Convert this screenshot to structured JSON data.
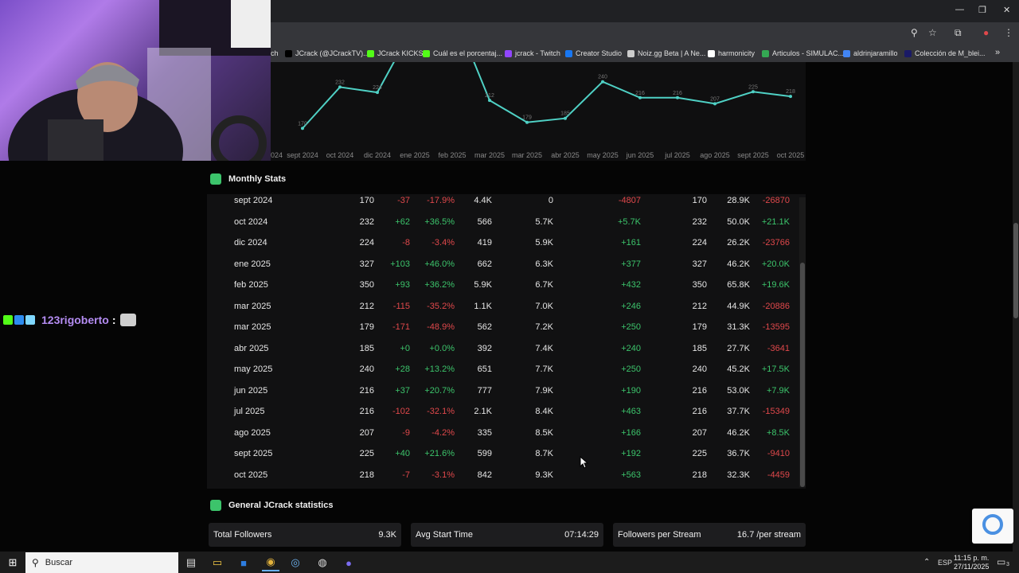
{
  "browser": {
    "bookmarks": [
      {
        "label": "ch",
        "color": "#6441a5"
      },
      {
        "label": "JCrack (@JCrackTV)...",
        "color": "#000000"
      },
      {
        "label": "JCrack KICKS",
        "color": "#53fc18"
      },
      {
        "label": "Cuál es el porcentaj...",
        "color": "#53fc18"
      },
      {
        "label": "jcrack - Twitch",
        "color": "#9146ff"
      },
      {
        "label": "Creator Studio",
        "color": "#1877f2"
      },
      {
        "label": "Noiz.gg Beta | A Ne...",
        "color": "#cccccc"
      },
      {
        "label": "harmonicity",
        "color": "#ffffff"
      },
      {
        "label": "Articulos - SIMULAC...",
        "color": "#34a853"
      },
      {
        "label": "aldrinjaramillo",
        "color": "#4285f4"
      },
      {
        "label": "Colección de M_blei...",
        "color": "#1a1a66"
      }
    ],
    "more": "»"
  },
  "chart_data": {
    "type": "line",
    "x": [
      "…024",
      "sept 2024",
      "oct 2024",
      "dic 2024",
      "ene 2025",
      "feb 2025",
      "mar 2025",
      "mar 2025",
      "abr 2025",
      "may 2025",
      "jun 2025",
      "jul 2025",
      "ago 2025",
      "sept 2025",
      "oct 2025"
    ],
    "series": [
      {
        "values": [
          null,
          170,
          232,
          224,
          327,
          350,
          212,
          179,
          185,
          240,
          216,
          216,
          207,
          225,
          218
        ]
      }
    ],
    "point_labels": [
      "170",
      "232",
      "224",
      "212",
      "179",
      "185",
      "240",
      "216",
      "216",
      "207",
      "225",
      "218"
    ],
    "color": "#4fd1c5",
    "ylim": [
      150,
      260
    ]
  },
  "monthly": {
    "title": "Monthly Stats",
    "rows": [
      [
        "sept 2024",
        "170",
        "-37",
        "-17.9%",
        "4.4K",
        "0",
        "-4807",
        "170",
        "28.9K",
        "-26870"
      ],
      [
        "oct 2024",
        "232",
        "+62",
        "+36.5%",
        "566",
        "5.7K",
        "+5.7K",
        "232",
        "50.0K",
        "+21.1K"
      ],
      [
        "dic 2024",
        "224",
        "-8",
        "-3.4%",
        "419",
        "5.9K",
        "+161",
        "224",
        "26.2K",
        "-23766"
      ],
      [
        "ene 2025",
        "327",
        "+103",
        "+46.0%",
        "662",
        "6.3K",
        "+377",
        "327",
        "46.2K",
        "+20.0K"
      ],
      [
        "feb 2025",
        "350",
        "+93",
        "+36.2%",
        "5.9K",
        "6.7K",
        "+432",
        "350",
        "65.8K",
        "+19.6K"
      ],
      [
        "mar 2025",
        "212",
        "-115",
        "-35.2%",
        "1.1K",
        "7.0K",
        "+246",
        "212",
        "44.9K",
        "-20886"
      ],
      [
        "mar 2025",
        "179",
        "-171",
        "-48.9%",
        "562",
        "7.2K",
        "+250",
        "179",
        "31.3K",
        "-13595"
      ],
      [
        "abr 2025",
        "185",
        "+0",
        "+0.0%",
        "392",
        "7.4K",
        "+240",
        "185",
        "27.7K",
        "-3641"
      ],
      [
        "may 2025",
        "240",
        "+28",
        "+13.2%",
        "651",
        "7.7K",
        "+250",
        "240",
        "45.2K",
        "+17.5K"
      ],
      [
        "jun 2025",
        "216",
        "+37",
        "+20.7%",
        "777",
        "7.9K",
        "+190",
        "216",
        "53.0K",
        "+7.9K"
      ],
      [
        "jul 2025",
        "216",
        "-102",
        "-32.1%",
        "2.1K",
        "8.4K",
        "+463",
        "216",
        "37.7K",
        "-15349"
      ],
      [
        "ago 2025",
        "207",
        "-9",
        "-4.2%",
        "335",
        "8.5K",
        "+166",
        "207",
        "46.2K",
        "+8.5K"
      ],
      [
        "sept 2025",
        "225",
        "+40",
        "+21.6%",
        "599",
        "8.7K",
        "+192",
        "225",
        "36.7K",
        "-9410"
      ],
      [
        "oct 2025",
        "218",
        "-7",
        "-3.1%",
        "842",
        "9.3K",
        "+563",
        "218",
        "32.3K",
        "-4459"
      ]
    ]
  },
  "general": {
    "title": "General JCrack statistics",
    "cards": [
      {
        "label": "Total Followers",
        "value": "9.3K"
      },
      {
        "label": "Avg Start Time",
        "value": "07:14:29"
      },
      {
        "label": "Followers per Stream",
        "value": "16.7 /per stream"
      }
    ]
  },
  "chat": {
    "user": "123rigoberto",
    "separator": ":"
  },
  "taskbar": {
    "search_placeholder": "Buscar",
    "lang": "ESP",
    "time": "11:15 p. m.",
    "date": "27/11/2025",
    "notif_count": "3"
  }
}
